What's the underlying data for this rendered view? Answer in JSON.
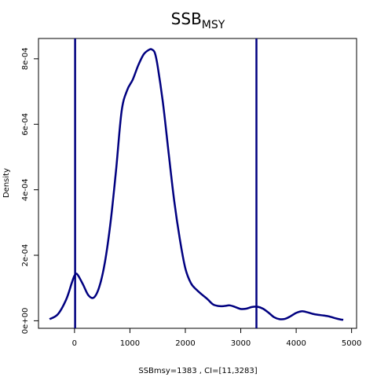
{
  "chart_data": {
    "type": "line",
    "title": "SSB",
    "title_subscript": "MSY",
    "xlabel": "SSBmsy=1383 , CI=[11,3283]",
    "ylabel": "Density",
    "xlim": [
      -650,
      5090
    ],
    "ylim": [
      -2.3e-05,
      0.000862
    ],
    "x_ticks": [
      0,
      1000,
      2000,
      3000,
      4000,
      5000
    ],
    "x_tick_labels": [
      "0",
      "1000",
      "2000",
      "3000",
      "4000",
      "5000"
    ],
    "y_ticks": [
      0,
      0.0002,
      0.0004,
      0.0006,
      0.0008
    ],
    "y_tick_labels": [
      "0e+00",
      "2e-04",
      "4e-04",
      "6e-04",
      "8e-04"
    ],
    "grid": false,
    "line_color": "#000080",
    "vlines": [
      11,
      3283
    ],
    "series": [
      {
        "x": [
          -450,
          -300,
          -150,
          -50,
          0,
          50,
          150,
          250,
          350,
          450,
          550,
          650,
          750,
          850,
          950,
          1050,
          1150,
          1250,
          1350,
          1400,
          1450,
          1500,
          1600,
          1700,
          1800,
          1900,
          2000,
          2100,
          2200,
          2300,
          2400,
          2500,
          2600,
          2700,
          2800,
          2900,
          3000,
          3100,
          3200,
          3300,
          3400,
          3500,
          3600,
          3700,
          3800,
          3900,
          4000,
          4100,
          4200,
          4300,
          4400,
          4500,
          4600,
          4700,
          4800,
          4850
        ],
        "values": [
          5e-06,
          2e-05,
          6.5e-05,
          0.000115,
          0.000138,
          0.000142,
          0.000112,
          7.8e-05,
          7.1e-05,
          0.000105,
          0.00018,
          0.0003,
          0.00046,
          0.00064,
          0.000704,
          0.000736,
          0.00078,
          0.000814,
          0.000828,
          0.000828,
          0.000818,
          0.000778,
          0.00066,
          0.00051,
          0.000365,
          0.00025,
          0.00016,
          0.000115,
          9.5e-05,
          8e-05,
          6.6e-05,
          5e-05,
          4.5e-05,
          4.5e-05,
          4.7e-05,
          4.2e-05,
          3.6e-05,
          3.7e-05,
          4.2e-05,
          4.3e-05,
          3.7e-05,
          2.5e-05,
          1.1e-05,
          5e-06,
          6e-06,
          1.4e-05,
          2.4e-05,
          2.9e-05,
          2.6e-05,
          2.1e-05,
          1.8e-05,
          1.6e-05,
          1.3e-05,
          8e-06,
          4e-06,
          3e-06
        ]
      }
    ]
  }
}
